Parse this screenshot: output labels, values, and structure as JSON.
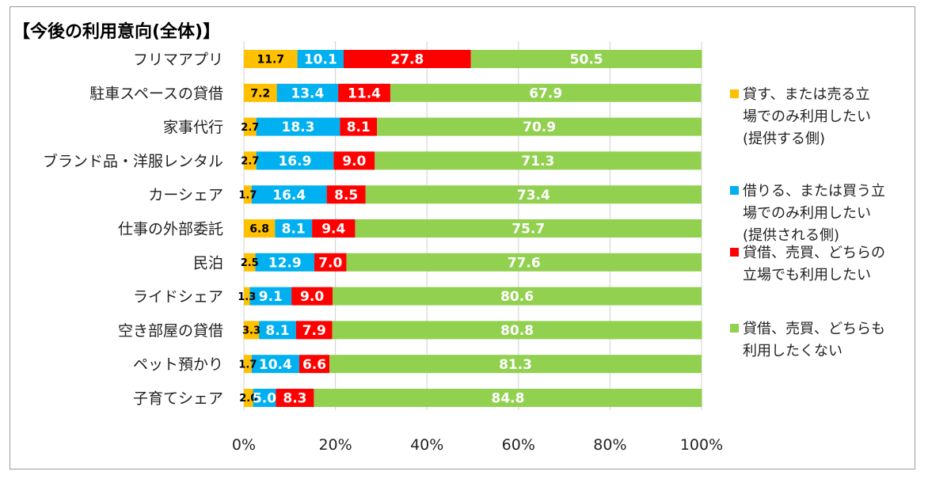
{
  "chart_data": {
    "type": "bar",
    "orientation": "horizontal",
    "stacked": true,
    "title": "【今後の利用意向(全体)】",
    "categories": [
      "フリマアプリ",
      "駐車スペースの貸借",
      "家事代行",
      "ブランド品・洋服レンタル",
      "カーシェア",
      "仕事の外部委託",
      "民泊",
      "ライドシェア",
      "空き部屋の貸借",
      "ペット預かり",
      "子育てシェア"
    ],
    "series": [
      {
        "name_lines": [
          "貸す、または売る立",
          "場でのみ利用したい",
          "(提供する側)"
        ],
        "color": "#FFC000",
        "label_color": "#000000",
        "values": [
          11.7,
          7.2,
          2.7,
          2.7,
          1.7,
          6.8,
          2.5,
          1.3,
          3.3,
          1.7,
          2.0
        ],
        "labels": [
          "11.7",
          "7.2",
          "2.7",
          "2.7",
          "1.7",
          "6.8",
          "2.5",
          "1.3",
          "3.3",
          "1.7",
          "2.0"
        ]
      },
      {
        "name_lines": [
          "借りる、または買う立",
          "場でのみ利用したい",
          "(提供される側)"
        ],
        "color": "#00B0F0",
        "label_color": "#ffffff",
        "values": [
          10.1,
          13.4,
          18.3,
          16.9,
          16.4,
          8.1,
          12.9,
          9.1,
          8.1,
          10.4,
          5.0
        ],
        "labels": [
          "10.1",
          "13.4",
          "18.3",
          "16.9",
          "16.4",
          "8.1",
          "12.9",
          "9.1",
          "8.1",
          "10.4",
          "5.0"
        ]
      },
      {
        "name_lines": [
          "貸借、売買、どちらの",
          "立場でも利用したい"
        ],
        "color": "#FF0000",
        "label_color": "#ffffff",
        "values": [
          27.8,
          11.4,
          8.1,
          9.0,
          8.5,
          9.4,
          7.0,
          9.0,
          7.9,
          6.6,
          8.3
        ],
        "labels": [
          "27.8",
          "11.4",
          "8.1",
          "9.0",
          "8.5",
          "9.4",
          "7.0",
          "9.0",
          "7.9",
          "6.6",
          "8.3"
        ]
      },
      {
        "name_lines": [
          "貸借、売買、どちらも",
          "利用したくない"
        ],
        "color": "#92D050",
        "label_color": "#ffffff",
        "values": [
          50.5,
          67.9,
          70.9,
          71.3,
          73.4,
          75.7,
          77.6,
          80.6,
          80.8,
          81.3,
          84.8
        ],
        "labels": [
          "50.5",
          "67.9",
          "70.9",
          "71.3",
          "73.4",
          "75.7",
          "77.6",
          "80.6",
          "80.8",
          "81.3",
          "84.8"
        ]
      }
    ],
    "xlim": [
      0,
      100
    ],
    "xticks": [
      "0%",
      "20%",
      "40%",
      "60%",
      "80%",
      "100%"
    ],
    "grid": true,
    "legend_position": "right"
  }
}
